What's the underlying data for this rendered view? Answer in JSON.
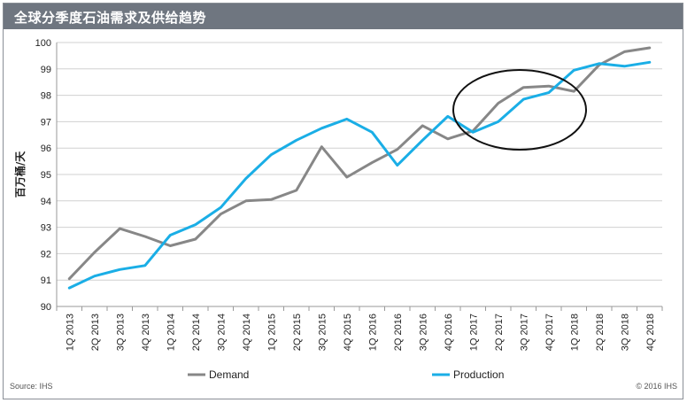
{
  "header": {
    "title": "全球分季度石油需求及供给趋势"
  },
  "footer": {
    "source": "Source: IHS",
    "copyright": "© 2016 IHS"
  },
  "colors": {
    "demand": "#878787",
    "production": "#1aaee6",
    "titlebar": "#6f7680",
    "grid": "#d0d0d0"
  },
  "chart_data": {
    "type": "line",
    "ylabel": "百万桶/天",
    "ylim": [
      90,
      100
    ],
    "yticks": [
      90,
      91,
      92,
      93,
      94,
      95,
      96,
      97,
      98,
      99,
      100
    ],
    "categories": [
      "1Q 2013",
      "2Q 2013",
      "3Q 2013",
      "4Q 2013",
      "1Q 2014",
      "2Q 2014",
      "3Q 2014",
      "4Q 2014",
      "1Q 2015",
      "2Q 2015",
      "3Q 2015",
      "4Q 2015",
      "1Q 2016",
      "2Q 2016",
      "3Q 2016",
      "4Q 2016",
      "1Q 2017",
      "2Q 2017",
      "3Q 2017",
      "4Q 2017",
      "1Q 2018",
      "2Q 2018",
      "3Q 2018",
      "4Q 2018"
    ],
    "series": [
      {
        "name": "Demand",
        "values": [
          91.05,
          92.05,
          92.95,
          92.65,
          92.3,
          92.55,
          93.5,
          94.0,
          94.05,
          94.4,
          96.05,
          94.9,
          95.45,
          95.95,
          96.85,
          96.35,
          96.65,
          97.7,
          98.3,
          98.35,
          98.15,
          99.15,
          99.65,
          99.8
        ]
      },
      {
        "name": "Production",
        "values": [
          90.7,
          91.15,
          91.4,
          91.55,
          92.7,
          93.1,
          93.75,
          94.85,
          95.75,
          96.3,
          96.75,
          97.1,
          96.6,
          95.35,
          96.3,
          97.2,
          96.6,
          97.0,
          97.85,
          98.1,
          98.95,
          99.2,
          99.1,
          99.25
        ]
      }
    ],
    "legend": {
      "placement": "bottom"
    },
    "annotation": "ellipse"
  }
}
